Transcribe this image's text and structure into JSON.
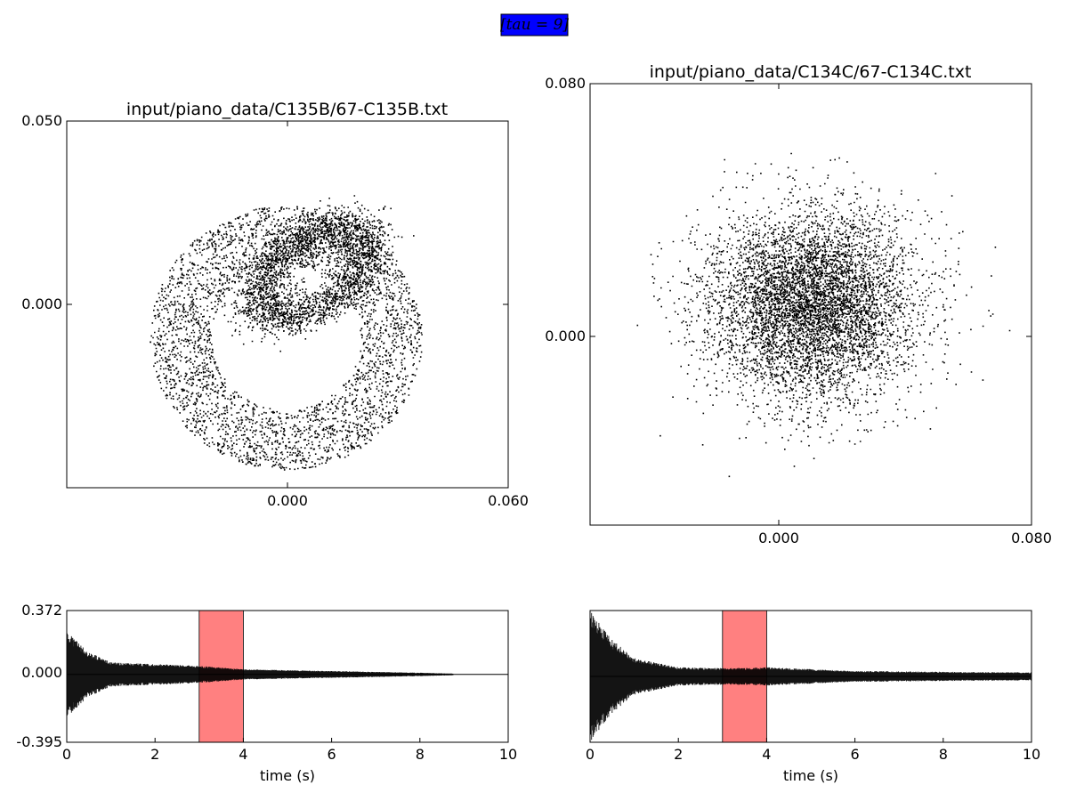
{
  "figure_label": "[tau = 9]",
  "chart_data": [
    {
      "type": "scatter",
      "title": "input/piano_data/C135B/67-C135B.txt",
      "xlabel": "",
      "ylabel": "",
      "xlim": [
        -0.06,
        0.06
      ],
      "ylim": [
        -0.05,
        0.05
      ],
      "x_tick_labels": [
        "0.000",
        "0.060"
      ],
      "y_tick_labels": [
        "0.050",
        "0.000"
      ],
      "pattern": "ring",
      "points_shown": 6000,
      "x_center": -0.0005,
      "y_center": -0.009,
      "x_spread": 0.037,
      "y_spread": 0.036,
      "color": "#000000"
    },
    {
      "type": "scatter",
      "title": "input/piano_data/C134C/67-C134C.txt",
      "xlabel": "",
      "ylabel": "",
      "xlim": [
        -0.08,
        0.08
      ],
      "ylim": [
        -0.08,
        0.08
      ],
      "x_tick_labels": [
        "0.000",
        "0.080"
      ],
      "y_tick_labels": [
        "0.080",
        "0.000"
      ],
      "pattern": "cloud",
      "points_shown": 6000,
      "x_center": 0.0,
      "y_center": 0.0,
      "x_spread": 0.019,
      "y_spread": 0.017,
      "color": "#000000"
    },
    {
      "type": "area",
      "xlabel": "time (s)",
      "ylabel": "",
      "xlim": [
        0,
        10
      ],
      "ylim": [
        -0.395,
        0.372
      ],
      "x_tick_labels": [
        "0",
        "2",
        "4",
        "6",
        "8",
        "10"
      ],
      "y_tick_labels": [
        "0.372",
        "0.000",
        "-0.395"
      ],
      "highlight": [
        3,
        4
      ],
      "highlight_color": "#ff8080",
      "signal_end": 8.75,
      "envelope": [
        [
          0,
          0.25
        ],
        [
          0.5,
          0.13
        ],
        [
          1,
          0.07
        ],
        [
          2,
          0.06
        ],
        [
          3,
          0.05
        ],
        [
          4,
          0.03
        ],
        [
          6,
          0.02
        ],
        [
          8,
          0.01
        ],
        [
          8.75,
          0.005
        ]
      ],
      "color": "#000000"
    },
    {
      "type": "area",
      "xlabel": "time (s)",
      "ylabel": "",
      "xlim": [
        0,
        10
      ],
      "ylim": [
        -0.36,
        0.36
      ],
      "x_tick_labels": [
        "0",
        "2",
        "4",
        "6",
        "8",
        "10"
      ],
      "y_tick_labels": [],
      "highlight": [
        3,
        4
      ],
      "highlight_color": "#ff8080",
      "signal_end": 10,
      "envelope": [
        [
          0,
          0.36
        ],
        [
          0.5,
          0.2
        ],
        [
          1,
          0.1
        ],
        [
          2,
          0.05
        ],
        [
          3,
          0.045
        ],
        [
          4,
          0.05
        ],
        [
          6,
          0.03
        ],
        [
          8,
          0.025
        ],
        [
          10,
          0.022
        ]
      ],
      "color": "#000000"
    }
  ]
}
